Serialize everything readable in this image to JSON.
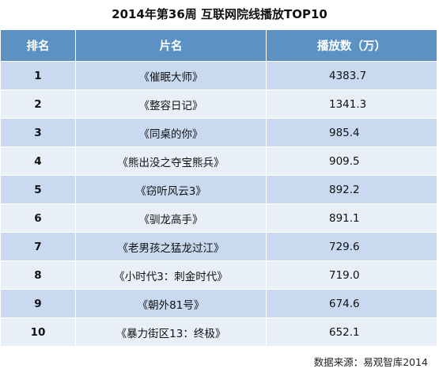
{
  "title": "2014年第36周 互联网院线播放TOP10",
  "columns": {
    "rank": "排名",
    "name": "片名",
    "plays": "播放数（万）"
  },
  "rows": [
    {
      "rank": "1",
      "name": "《催眠大师》",
      "plays": "4383.7"
    },
    {
      "rank": "2",
      "name": "《整容日记》",
      "plays": "1341.3"
    },
    {
      "rank": "3",
      "name": "《同桌的你》",
      "plays": "985.4"
    },
    {
      "rank": "4",
      "name": "《熊出没之夺宝熊兵》",
      "plays": "909.5"
    },
    {
      "rank": "5",
      "name": "《窃听风云3》",
      "plays": "892.2"
    },
    {
      "rank": "6",
      "name": "《驯龙高手》",
      "plays": "891.1"
    },
    {
      "rank": "7",
      "name": "《老男孩之猛龙过江》",
      "plays": "729.6"
    },
    {
      "rank": "8",
      "name": "《小时代3：刺金时代》",
      "plays": "719.0"
    },
    {
      "rank": "9",
      "name": "《朝外81号》",
      "plays": "674.6"
    },
    {
      "rank": "10",
      "name": "《暴力街区13：终极》",
      "plays": "652.1"
    }
  ],
  "source": "数据来源：易观智库2014",
  "watermark": "易观智库",
  "colors": {
    "header": "#5b92c3",
    "row_odd": "#c9daf0",
    "row_even": "#e9eff8"
  }
}
